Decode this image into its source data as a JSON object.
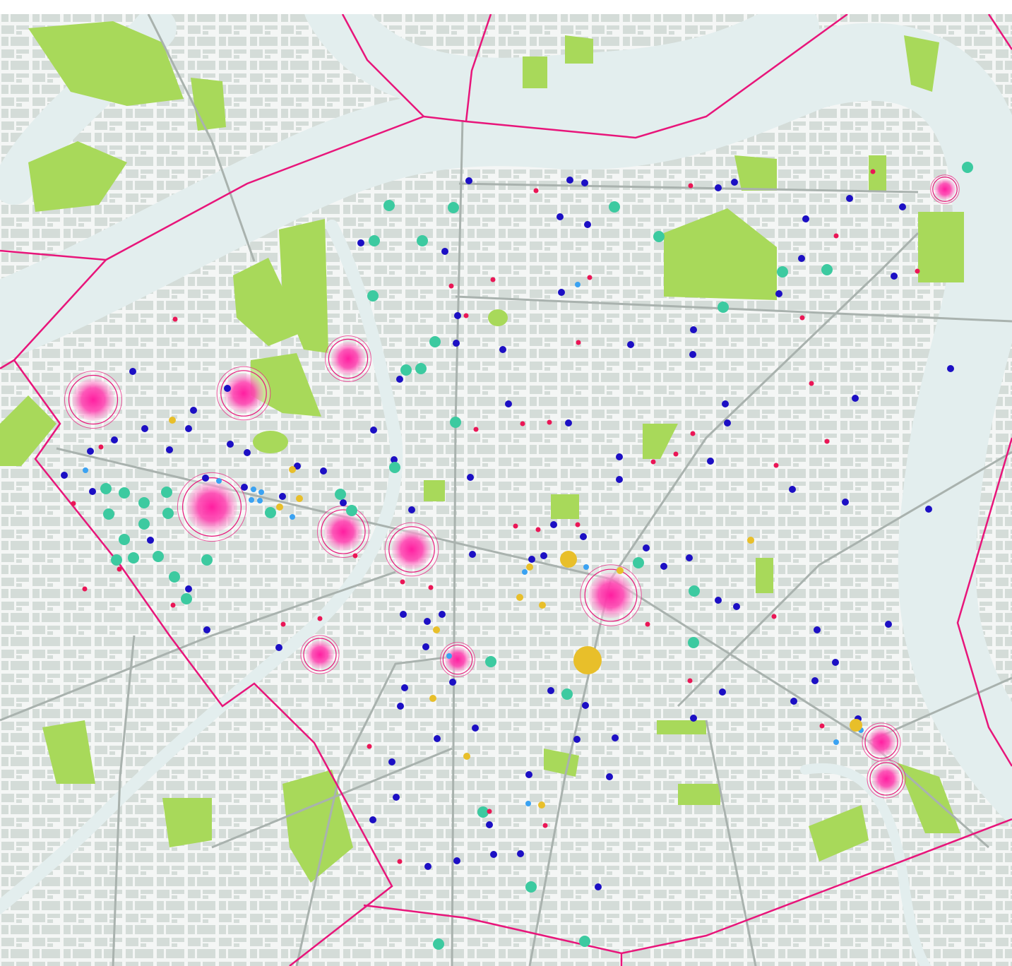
{
  "map": {
    "colors": {
      "background": "#ffffff",
      "land": "#f4f6f5",
      "building": "#d4dcd8",
      "water": "#e3eeee",
      "park": "#a8d95a",
      "road": "#a9b2ae",
      "boundary": "#e8157a"
    },
    "marker_categories": [
      {
        "id": "dark-blue",
        "color": "#1c0fc4"
      },
      {
        "id": "teal",
        "color": "#3ccaa0"
      },
      {
        "id": "red",
        "color": "#ea1656"
      },
      {
        "id": "yellow",
        "color": "#e8bf2a"
      },
      {
        "id": "light-blue",
        "color": "#3aa2f2"
      },
      {
        "id": "pink-hotspot",
        "color": "#ff1ea0"
      }
    ]
  }
}
